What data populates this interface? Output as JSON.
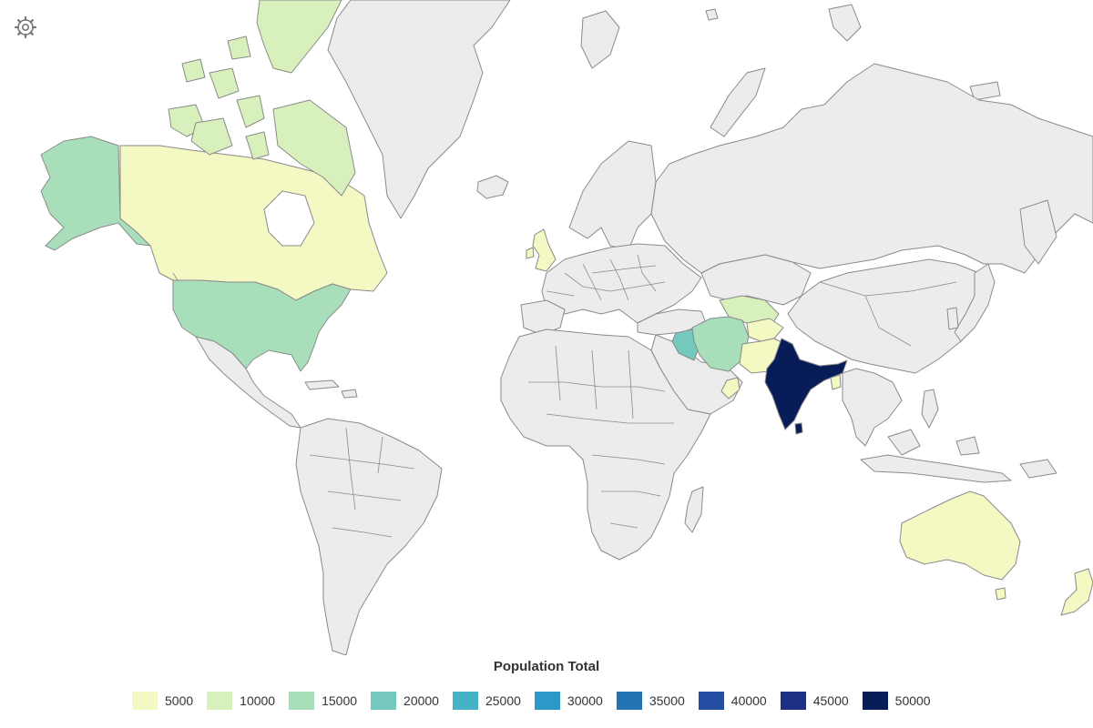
{
  "legend": {
    "title": "Population Total",
    "items": [
      {
        "label": "5000",
        "color": "#f4f8c3"
      },
      {
        "label": "10000",
        "color": "#d8f0bb"
      },
      {
        "label": "15000",
        "color": "#a8dfba"
      },
      {
        "label": "20000",
        "color": "#75c9bc"
      },
      {
        "label": "25000",
        "color": "#45b3c4"
      },
      {
        "label": "30000",
        "color": "#2c98c7"
      },
      {
        "label": "35000",
        "color": "#2274b4"
      },
      {
        "label": "40000",
        "color": "#234da1"
      },
      {
        "label": "45000",
        "color": "#1e2f86"
      },
      {
        "label": "50000",
        "color": "#081d58"
      }
    ]
  },
  "regions": [
    {
      "name": "India",
      "value_bucket": "50000"
    },
    {
      "name": "Iran",
      "value_bucket": "15000"
    },
    {
      "name": "Alaska",
      "value_bucket": "15000"
    },
    {
      "name": "United States",
      "value_bucket": "15000"
    },
    {
      "name": "Iraq",
      "value_bucket": "20000"
    },
    {
      "name": "Canada",
      "value_bucket": "5000"
    },
    {
      "name": "Canadian Arctic",
      "value_bucket": "10000"
    },
    {
      "name": "Australia",
      "value_bucket": "5000"
    },
    {
      "name": "Pakistan",
      "value_bucket": "5000"
    },
    {
      "name": "Afghanistan",
      "value_bucket": "5000"
    },
    {
      "name": "United Kingdom",
      "value_bucket": "5000"
    },
    {
      "name": "Uzbekistan",
      "value_bucket": "10000"
    },
    {
      "name": "Oman",
      "value_bucket": "5000"
    },
    {
      "name": "New Zealand",
      "value_bucket": "5000"
    },
    {
      "name": "Bangladesh",
      "value_bucket": "5000"
    }
  ],
  "icons": {
    "settings": "gear-icon"
  }
}
